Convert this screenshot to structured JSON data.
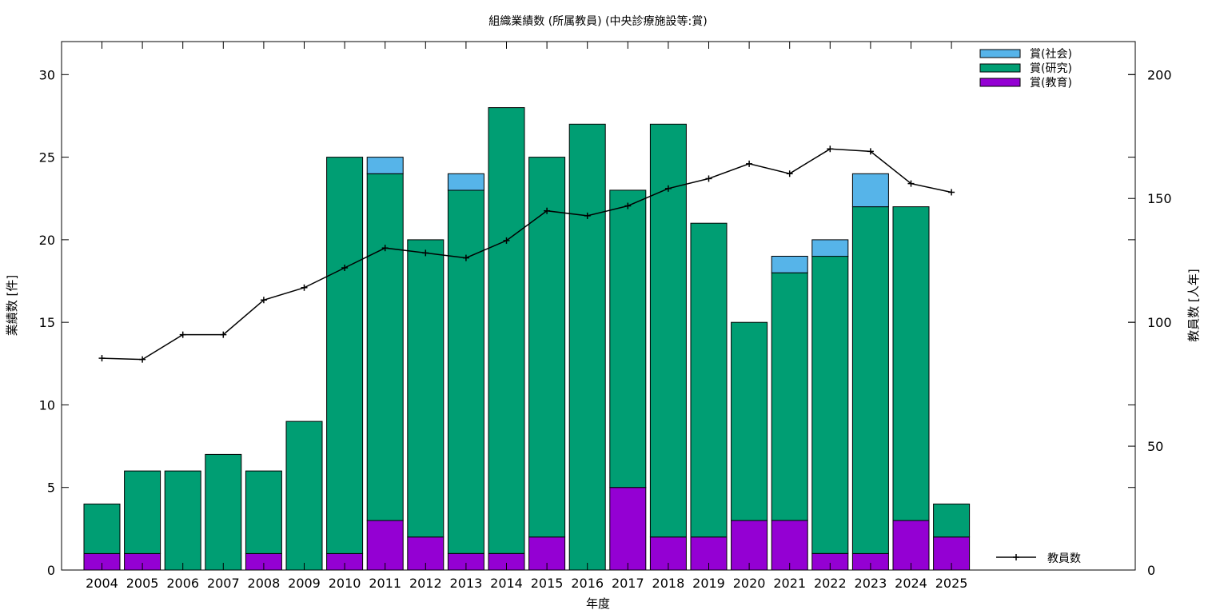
{
  "chart_data": {
    "type": "bar",
    "stacked": true,
    "title": "組織業績数 (所属教員) (中央診療施設等:賞)",
    "xlabel": "年度",
    "ylabel": "業績数 [件]",
    "y2label": "教員数 [人年]",
    "ylim": [
      0,
      32
    ],
    "y2lim": [
      0,
      213.33
    ],
    "yticks": [
      0,
      5,
      10,
      15,
      20,
      25,
      30
    ],
    "y2ticks": [
      0,
      50,
      100,
      150,
      200
    ],
    "categories": [
      "2004",
      "2005",
      "2006",
      "2007",
      "2008",
      "2009",
      "2010",
      "2011",
      "2012",
      "2013",
      "2014",
      "2015",
      "2016",
      "2017",
      "2018",
      "2019",
      "2020",
      "2021",
      "2022",
      "2023",
      "2024",
      "2025"
    ],
    "series": [
      {
        "name": "賞(教育)",
        "color": "#9400d3",
        "values": [
          1,
          1,
          0,
          0,
          1,
          0,
          1,
          3,
          2,
          1,
          1,
          2,
          0,
          5,
          2,
          2,
          3,
          3,
          1,
          1,
          3,
          2
        ]
      },
      {
        "name": "賞(研究)",
        "color": "#009e73",
        "values": [
          3,
          5,
          6,
          7,
          5,
          9,
          24,
          21,
          18,
          22,
          27,
          23,
          27,
          18,
          25,
          19,
          12,
          15,
          18,
          21,
          19,
          2
        ]
      },
      {
        "name": "賞(社会)",
        "color": "#56b4e9",
        "values": [
          0,
          0,
          0,
          0,
          0,
          0,
          0,
          1,
          0,
          1,
          0,
          0,
          0,
          0,
          0,
          0,
          0,
          1,
          1,
          2,
          0,
          0
        ]
      }
    ],
    "line_series": {
      "name": "教員数",
      "color": "#000000",
      "axis": "right",
      "values": [
        85.5,
        85,
        95,
        95,
        109,
        114,
        122,
        130,
        128,
        126,
        133,
        145,
        143,
        147,
        154,
        158,
        164,
        160,
        170,
        169,
        156,
        152.5
      ]
    },
    "grid": false,
    "legend_position": "top-right",
    "line_legend_position": "bottom-right"
  }
}
